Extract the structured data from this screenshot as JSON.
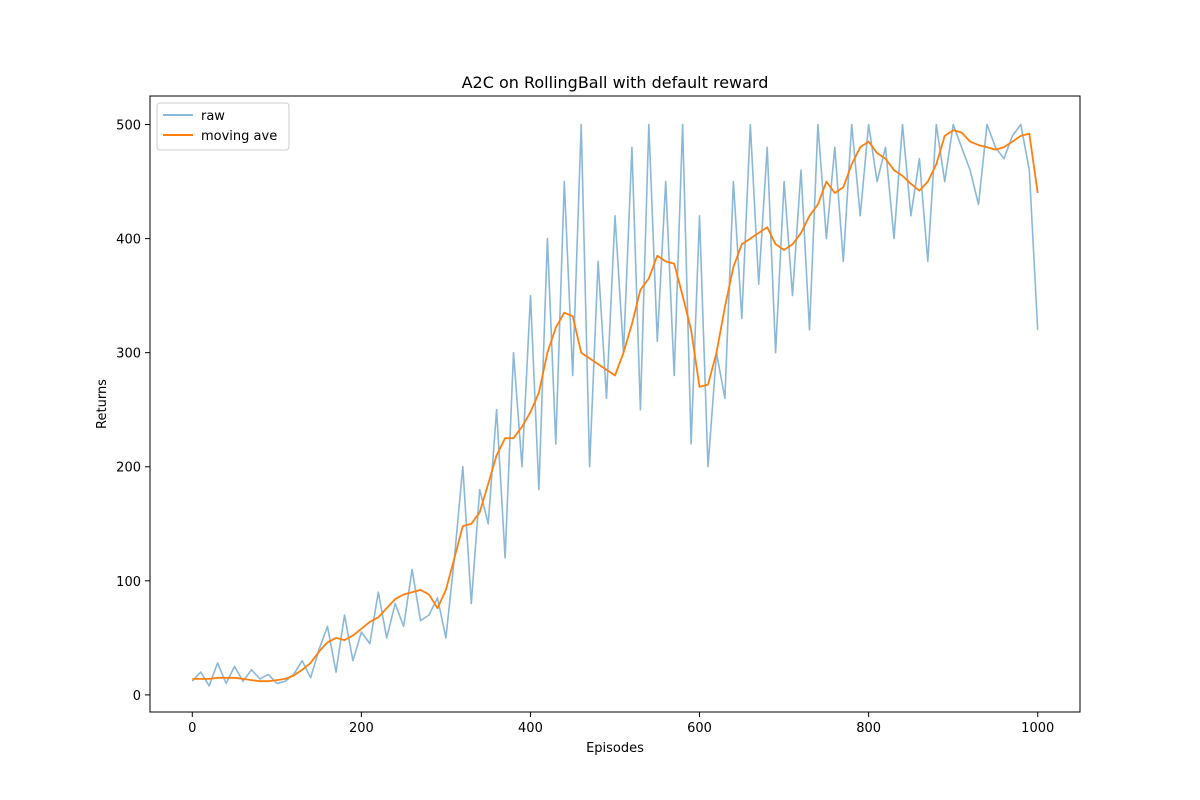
{
  "chart_data": {
    "type": "line",
    "title": "A2C on RollingBall with default reward",
    "xlabel": "Episodes",
    "ylabel": "Returns",
    "xlim": [
      -50,
      1050
    ],
    "ylim": [
      -15,
      525
    ],
    "xticks": [
      0,
      200,
      400,
      600,
      800,
      1000
    ],
    "yticks": [
      0,
      100,
      200,
      300,
      400,
      500
    ],
    "grid": false,
    "legend_position": "top-left",
    "series": [
      {
        "name": "raw",
        "color": "#8ab8d9",
        "x": [
          0,
          10,
          20,
          30,
          40,
          50,
          60,
          70,
          80,
          90,
          100,
          110,
          120,
          130,
          140,
          150,
          160,
          170,
          180,
          190,
          200,
          210,
          220,
          230,
          240,
          250,
          260,
          270,
          280,
          290,
          300,
          310,
          320,
          330,
          340,
          350,
          360,
          370,
          380,
          390,
          400,
          410,
          420,
          430,
          440,
          450,
          460,
          470,
          480,
          490,
          500,
          510,
          520,
          530,
          540,
          550,
          560,
          570,
          580,
          590,
          600,
          610,
          620,
          630,
          640,
          650,
          660,
          670,
          680,
          690,
          700,
          710,
          720,
          730,
          740,
          750,
          760,
          770,
          780,
          790,
          800,
          810,
          820,
          830,
          840,
          850,
          860,
          870,
          880,
          890,
          900,
          910,
          920,
          930,
          940,
          950,
          960,
          970,
          980,
          990,
          1000
        ],
        "y": [
          12,
          20,
          8,
          28,
          10,
          25,
          12,
          22,
          14,
          18,
          10,
          12,
          18,
          30,
          15,
          40,
          60,
          20,
          70,
          30,
          55,
          45,
          90,
          50,
          80,
          60,
          110,
          65,
          70,
          85,
          50,
          120,
          200,
          80,
          180,
          150,
          250,
          120,
          300,
          200,
          350,
          180,
          400,
          220,
          450,
          280,
          500,
          200,
          380,
          260,
          420,
          300,
          480,
          250,
          500,
          310,
          450,
          280,
          500,
          220,
          420,
          200,
          300,
          260,
          450,
          330,
          500,
          360,
          480,
          300,
          450,
          350,
          460,
          320,
          500,
          400,
          480,
          380,
          500,
          420,
          500,
          450,
          480,
          400,
          500,
          420,
          470,
          380,
          500,
          450,
          500,
          480,
          460,
          430,
          500,
          480,
          470,
          490,
          500,
          460,
          320
        ]
      },
      {
        "name": "moving ave",
        "color": "#ff7f0e",
        "x": [
          0,
          10,
          20,
          30,
          40,
          50,
          60,
          70,
          80,
          90,
          100,
          110,
          120,
          130,
          140,
          150,
          160,
          170,
          180,
          190,
          200,
          210,
          220,
          230,
          240,
          250,
          260,
          270,
          280,
          290,
          300,
          310,
          320,
          330,
          340,
          350,
          360,
          370,
          380,
          390,
          400,
          410,
          420,
          430,
          440,
          450,
          460,
          470,
          480,
          490,
          500,
          510,
          520,
          530,
          540,
          550,
          560,
          570,
          580,
          590,
          600,
          610,
          620,
          630,
          640,
          650,
          660,
          670,
          680,
          690,
          700,
          710,
          720,
          730,
          740,
          750,
          760,
          770,
          780,
          790,
          800,
          810,
          820,
          830,
          840,
          850,
          860,
          870,
          880,
          890,
          900,
          910,
          920,
          930,
          940,
          950,
          960,
          970,
          980,
          990,
          1000
        ],
        "y": [
          14,
          14,
          14,
          15,
          15,
          15,
          14,
          13,
          12,
          12,
          13,
          14,
          17,
          22,
          28,
          38,
          46,
          50,
          48,
          52,
          58,
          64,
          68,
          76,
          84,
          88,
          90,
          92,
          88,
          76,
          92,
          120,
          148,
          150,
          160,
          185,
          210,
          225,
          225,
          235,
          248,
          265,
          300,
          322,
          335,
          332,
          300,
          295,
          290,
          285,
          280,
          300,
          325,
          355,
          365,
          385,
          380,
          378,
          350,
          320,
          270,
          272,
          300,
          340,
          375,
          395,
          400,
          405,
          410,
          395,
          390,
          395,
          405,
          420,
          430,
          450,
          440,
          445,
          465,
          480,
          485,
          475,
          470,
          460,
          455,
          448,
          442,
          450,
          465,
          490,
          495,
          493,
          485,
          482,
          480,
          478,
          480,
          485,
          490,
          492,
          440
        ]
      }
    ]
  }
}
